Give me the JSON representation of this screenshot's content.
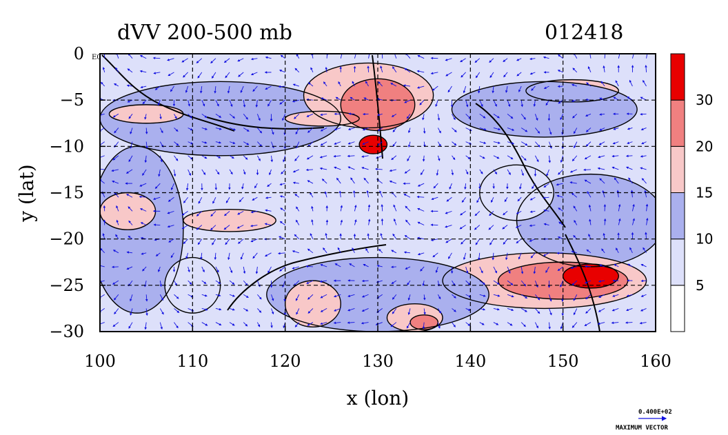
{
  "title": "dVV 200-500 mb",
  "date_label": "012418",
  "xlabel": "x (lon)",
  "ylabel": "y (lat)",
  "corner_label": "E0",
  "x_ticks": [
    "100",
    "110",
    "120",
    "130",
    "140",
    "150",
    "160"
  ],
  "y_ticks": [
    "0",
    "−5",
    "−10",
    "−15",
    "−20",
    "−25",
    "−30"
  ],
  "colorbar": {
    "ticks": [
      "5",
      "10",
      "15",
      "20",
      "30"
    ],
    "colors": [
      "#ffffff",
      "#dde0fa",
      "#aab0ee",
      "#f8c8c8",
      "#f08080",
      "#e80000"
    ]
  },
  "vector_legend": {
    "magnitude": "0.400E+02",
    "label": "MAXIMUM VECTOR",
    "color": "#1010e0"
  },
  "chart_data": {
    "type": "heatmap",
    "title": "dVV 200-500 mb",
    "xlabel": "x (lon)",
    "ylabel": "y (lat)",
    "xlim": [
      100,
      160
    ],
    "ylim": [
      -30,
      0
    ],
    "contour_levels": [
      5,
      10,
      15,
      20,
      30
    ],
    "regions": [
      {
        "name": "sw-blue",
        "level": 10,
        "cx": 104,
        "cy": -19,
        "rx": 5,
        "ry": 9
      },
      {
        "name": "nw-band",
        "level": 10,
        "cx": 113,
        "cy": -7,
        "rx": 13,
        "ry": 4
      },
      {
        "name": "left-pink-1",
        "level": 15,
        "cx": 105,
        "cy": -6.5,
        "rx": 4,
        "ry": 1
      },
      {
        "name": "left-pink-2",
        "level": 15,
        "cx": 103,
        "cy": -17,
        "rx": 3,
        "ry": 2
      },
      {
        "name": "mid-pink-1",
        "level": 15,
        "cx": 114,
        "cy": -18,
        "rx": 5,
        "ry": 1.2
      },
      {
        "name": "mid-pink-2",
        "level": 15,
        "cx": 124,
        "cy": -7,
        "rx": 4,
        "ry": 0.8
      },
      {
        "name": "north-red-outer",
        "level": 15,
        "cx": 129,
        "cy": -4.5,
        "rx": 7,
        "ry": 3.5
      },
      {
        "name": "north-red-mid",
        "level": 20,
        "cx": 130,
        "cy": -5.5,
        "rx": 4,
        "ry": 2.8
      },
      {
        "name": "north-red-core",
        "level": 30,
        "cx": 129.5,
        "cy": -9.8,
        "rx": 1.5,
        "ry": 1
      },
      {
        "name": "ne-pink",
        "level": 15,
        "cx": 151,
        "cy": -4,
        "rx": 5,
        "ry": 1.2
      },
      {
        "name": "ne-blue",
        "level": 10,
        "cx": 148,
        "cy": -6,
        "rx": 10,
        "ry": 3
      },
      {
        "name": "east-blue",
        "level": 10,
        "cx": 153,
        "cy": -18,
        "rx": 8,
        "ry": 5
      },
      {
        "name": "se-band-outer",
        "level": 15,
        "cx": 148,
        "cy": -24.5,
        "rx": 11,
        "ry": 3
      },
      {
        "name": "se-band-mid",
        "level": 20,
        "cx": 150,
        "cy": -24.5,
        "rx": 7,
        "ry": 2
      },
      {
        "name": "se-band-core",
        "level": 30,
        "cx": 153,
        "cy": -24,
        "rx": 3,
        "ry": 1.3
      },
      {
        "name": "south-blue",
        "level": 10,
        "cx": 130,
        "cy": -26,
        "rx": 12,
        "ry": 4
      },
      {
        "name": "south-pink-1",
        "level": 15,
        "cx": 123,
        "cy": -27,
        "rx": 3,
        "ry": 2.5
      },
      {
        "name": "south-pink-2",
        "level": 15,
        "cx": 134,
        "cy": -28.5,
        "rx": 3,
        "ry": 1.5
      },
      {
        "name": "south-pink-3",
        "level": 20,
        "cx": 135,
        "cy": -29,
        "rx": 1.5,
        "ry": 0.8
      },
      {
        "name": "west-white-1",
        "level": 5,
        "cx": 110,
        "cy": -25,
        "rx": 3,
        "ry": 3
      },
      {
        "name": "center-white",
        "level": 5,
        "cx": 145,
        "cy": -15,
        "rx": 4,
        "ry": 3
      }
    ],
    "grid": true
  }
}
